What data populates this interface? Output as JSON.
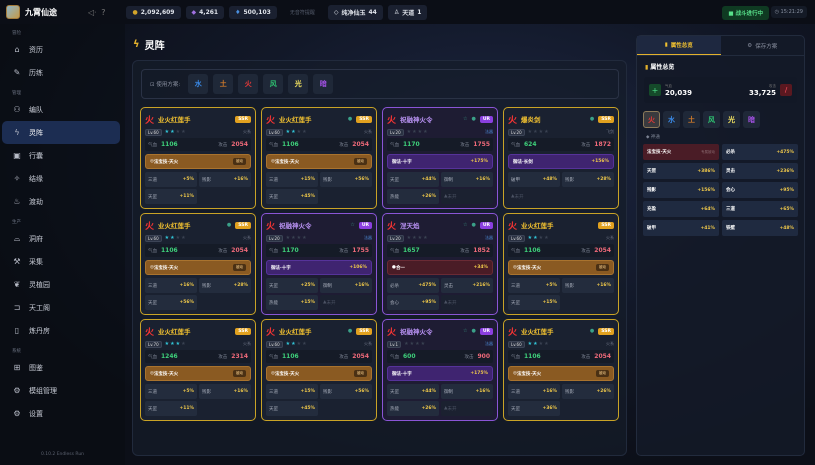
{
  "app": {
    "name": "九霄仙途",
    "version": "0.10.2 Endless Run"
  },
  "topbar": {
    "currencies": [
      {
        "icon": "gold-coin-icon",
        "value": "2,092,609",
        "color": "#d4a52a"
      },
      {
        "icon": "crystal-icon",
        "value": "4,261",
        "color": "#a070e0"
      },
      {
        "icon": "water-drop-icon",
        "value": "500,103",
        "color": "#4a90e0"
      }
    ],
    "notice": "无音符提醒",
    "items": [
      {
        "icon": "gem-icon",
        "label": "纯净仙玉",
        "value": "44"
      },
      {
        "icon": "person-icon",
        "label": "天道",
        "value": "1"
      }
    ],
    "status": "战斗进行中",
    "time": "15:21:29"
  },
  "sidebar": {
    "groups": [
      {
        "label": "冒险",
        "items": [
          {
            "icon": "home-icon",
            "glyph": "⌂",
            "label": "资历"
          },
          {
            "icon": "pen-icon",
            "glyph": "✎",
            "label": "历练"
          }
        ]
      },
      {
        "label": "管理",
        "items": [
          {
            "icon": "team-icon",
            "glyph": "⚇",
            "label": "编队"
          },
          {
            "icon": "formation-icon",
            "glyph": "ϟ",
            "label": "灵阵",
            "active": true
          },
          {
            "icon": "bag-icon",
            "glyph": "▣",
            "label": "行囊"
          },
          {
            "icon": "sparkle-icon",
            "glyph": "✧",
            "label": "结缘"
          },
          {
            "icon": "flame-icon",
            "glyph": "♨",
            "label": "渡劫"
          }
        ]
      },
      {
        "label": "生产",
        "items": [
          {
            "icon": "cave-icon",
            "glyph": "⌓",
            "label": "洞府"
          },
          {
            "icon": "pickaxe-icon",
            "glyph": "⚒",
            "label": "采集"
          },
          {
            "icon": "plant-icon",
            "glyph": "❦",
            "label": "灵植园"
          },
          {
            "icon": "workshop-icon",
            "glyph": "⊐",
            "label": "天工阁"
          },
          {
            "icon": "alchemy-icon",
            "glyph": "▯",
            "label": "炼丹房"
          }
        ]
      },
      {
        "label": "系统",
        "items": [
          {
            "icon": "book-icon",
            "glyph": "⊞",
            "label": "图鉴"
          },
          {
            "icon": "module-icon",
            "glyph": "⚙",
            "label": "模组管理"
          },
          {
            "icon": "settings-icon",
            "glyph": "⚙",
            "label": "设置"
          }
        ]
      }
    ]
  },
  "page": {
    "title": "灵阵"
  },
  "plans": {
    "label": "使用方案:",
    "elements": [
      {
        "label": "水",
        "color": "#3a8ae8"
      },
      {
        "label": "土",
        "color": "#d07a2a"
      },
      {
        "label": "火",
        "color": "#e03838"
      },
      {
        "label": "风",
        "color": "#2ec070"
      },
      {
        "label": "光",
        "color": "#f0e060"
      },
      {
        "label": "暗",
        "color": "#a050e0"
      }
    ]
  },
  "labels": {
    "hp": "气血",
    "atk": "攻击",
    "locked": "未开"
  },
  "cards": [
    {
      "name": "业火红莲手",
      "rarity": "SSR",
      "level": "Lv.60",
      "stars": 2,
      "tag": "火系",
      "hp": "1106",
      "atk": "2054",
      "skill": "法宝技·天火",
      "skill_badge": "被动",
      "skill_type": "gold",
      "stats": [
        [
          "三道",
          "+5%"
        ],
        [
          "残影",
          "+16%"
        ],
        [
          "天罡",
          "+11%"
        ]
      ]
    },
    {
      "name": "业火红莲手",
      "rarity": "SSR",
      "level": "Lv.60",
      "stars": 2,
      "tag": "火系",
      "fav": true,
      "hp": "1106",
      "atk": "2054",
      "skill": "法宝技·天火",
      "skill_badge": "被动",
      "skill_type": "gold",
      "stats": [
        [
          "三道",
          "+15%"
        ],
        [
          "残影",
          "+56%"
        ],
        [
          "天罡",
          "+45%"
        ]
      ]
    },
    {
      "name": "祝融神火令",
      "rarity": "UR",
      "level": "Lv.20",
      "stars": 0,
      "tag": "法器",
      "fav": true,
      "hp": "1170",
      "atk": "1755",
      "skill": "御法·十字",
      "skill_value": "+175%",
      "skill_type": "purple",
      "stats": [
        [
          "天罡",
          "+44%"
        ],
        [
          "御制",
          "+16%"
        ],
        [
          "热能",
          "+26%"
        ]
      ],
      "locked": 1
    },
    {
      "name": "爆炎剑",
      "rarity": "SSR",
      "level": "Lv.20",
      "stars": 0,
      "tag": "飞剑",
      "fav": true,
      "hp": "624",
      "atk": "1872",
      "skill": "御法·长剑",
      "skill_value": "+156%",
      "skill_type": "purple",
      "stats": [
        [
          "破甲",
          "+48%"
        ],
        [
          "残影",
          "+28%"
        ]
      ],
      "locked": 1
    },
    {
      "name": "业火红莲手",
      "rarity": "SSR",
      "level": "Lv.60",
      "stars": 2,
      "tag": "火系",
      "fav": true,
      "hp": "1106",
      "atk": "2054",
      "skill": "法宝技·天火",
      "skill_badge": "被动",
      "skill_type": "gold",
      "stats": [
        [
          "三道",
          "+16%"
        ],
        [
          "残影",
          "+28%"
        ],
        [
          "天罡",
          "+56%"
        ]
      ]
    },
    {
      "name": "祝融神火令",
      "rarity": "UR",
      "level": "Lv.20",
      "stars": 0,
      "tag": "法器",
      "hp": "1170",
      "atk": "1755",
      "skill": "御法·十字",
      "skill_value": "+106%",
      "skill_type": "purple",
      "stats": [
        [
          "天罡",
          "+25%"
        ],
        [
          "御制",
          "+16%"
        ],
        [
          "热能",
          "+15%"
        ]
      ],
      "locked": 1
    },
    {
      "name": "涅天焰",
      "rarity": "UR",
      "level": "Lv.20",
      "stars": 0,
      "tag": "法器",
      "fav": true,
      "hp": "1657",
      "atk": "1852",
      "skill": "合一",
      "skill_value": "+34%",
      "skill_type": "red",
      "stats": [
        [
          "必杀",
          "+475%"
        ],
        [
          "灵击",
          "+216%"
        ],
        [
          "会心",
          "+95%"
        ]
      ],
      "locked": 1
    },
    {
      "name": "业火红莲手",
      "rarity": "SSR",
      "level": "Lv.60",
      "stars": 2,
      "tag": "火系",
      "hp": "1106",
      "atk": "2054",
      "skill": "法宝技·天火",
      "skill_badge": "被动",
      "skill_type": "gold",
      "stats": [
        [
          "三道",
          "+5%"
        ],
        [
          "残影",
          "+16%"
        ],
        [
          "天罡",
          "+15%"
        ]
      ]
    },
    {
      "name": "业火红莲手",
      "rarity": "SSR",
      "level": "Lv.70",
      "stars": 3,
      "tag": "火系",
      "hp": "1246",
      "atk": "2314",
      "skill": "法宝技·天火",
      "skill_badge": "被动",
      "skill_type": "gold",
      "stats": [
        [
          "三道",
          "+5%"
        ],
        [
          "残影",
          "+16%"
        ],
        [
          "天罡",
          "+11%"
        ]
      ]
    },
    {
      "name": "业火红莲手",
      "rarity": "SSR",
      "level": "Lv.60",
      "stars": 2,
      "tag": "火系",
      "fav": true,
      "hp": "1106",
      "atk": "2054",
      "skill": "法宝技·天火",
      "skill_badge": "被动",
      "skill_type": "gold",
      "stats": [
        [
          "三道",
          "+15%"
        ],
        [
          "残影",
          "+56%"
        ],
        [
          "天罡",
          "+45%"
        ]
      ]
    },
    {
      "name": "祝融神火令",
      "rarity": "UR",
      "level": "Lv.1",
      "stars": 0,
      "tag": "法器",
      "fav": true,
      "hp": "600",
      "atk": "900",
      "skill": "御法·十字",
      "skill_value": "+175%",
      "skill_type": "purple",
      "stats": [
        [
          "天罡",
          "+44%"
        ],
        [
          "御制",
          "+16%"
        ],
        [
          "热能",
          "+26%"
        ]
      ],
      "locked": 1
    },
    {
      "name": "业火红莲手",
      "rarity": "SSR",
      "level": "Lv.60",
      "stars": 2,
      "tag": "火系",
      "fav": true,
      "hp": "1106",
      "atk": "2054",
      "skill": "法宝技·天火",
      "skill_badge": "被动",
      "skill_type": "gold",
      "stats": [
        [
          "三道",
          "+16%"
        ],
        [
          "残影",
          "+26%"
        ],
        [
          "天罡",
          "+36%"
        ]
      ]
    }
  ],
  "right": {
    "tabs": [
      {
        "label": "属性总览",
        "active": true
      },
      {
        "label": "保存方案"
      }
    ],
    "heading": "属性总览",
    "totals": {
      "hp_label": "气血",
      "hp": "20,039",
      "atk_label": "攻击",
      "atk": "33,725"
    },
    "elements": [
      {
        "label": "火",
        "color": "#e03838",
        "active": true
      },
      {
        "label": "水",
        "color": "#3a8ae8"
      },
      {
        "label": "土",
        "color": "#d07a2a"
      },
      {
        "label": "风",
        "color": "#2ec070"
      },
      {
        "label": "光",
        "color": "#f0e060"
      },
      {
        "label": "暗",
        "color": "#a050e0"
      }
    ],
    "section": "神通",
    "stats": [
      {
        "label": "法宝技·天火",
        "badge": "专属被动",
        "red": true
      },
      {
        "label": "必杀",
        "value": "+475%"
      },
      {
        "label": "天罡",
        "value": "+386%"
      },
      {
        "label": "灵击",
        "value": "+236%"
      },
      {
        "label": "残影",
        "value": "+156%"
      },
      {
        "label": "会心",
        "value": "+95%"
      },
      {
        "label": "充盈",
        "value": "+64%"
      },
      {
        "label": "三道",
        "value": "+65%"
      },
      {
        "label": "破甲",
        "value": "+41%"
      },
      {
        "label": "铁壁",
        "value": "+48%"
      }
    ]
  }
}
